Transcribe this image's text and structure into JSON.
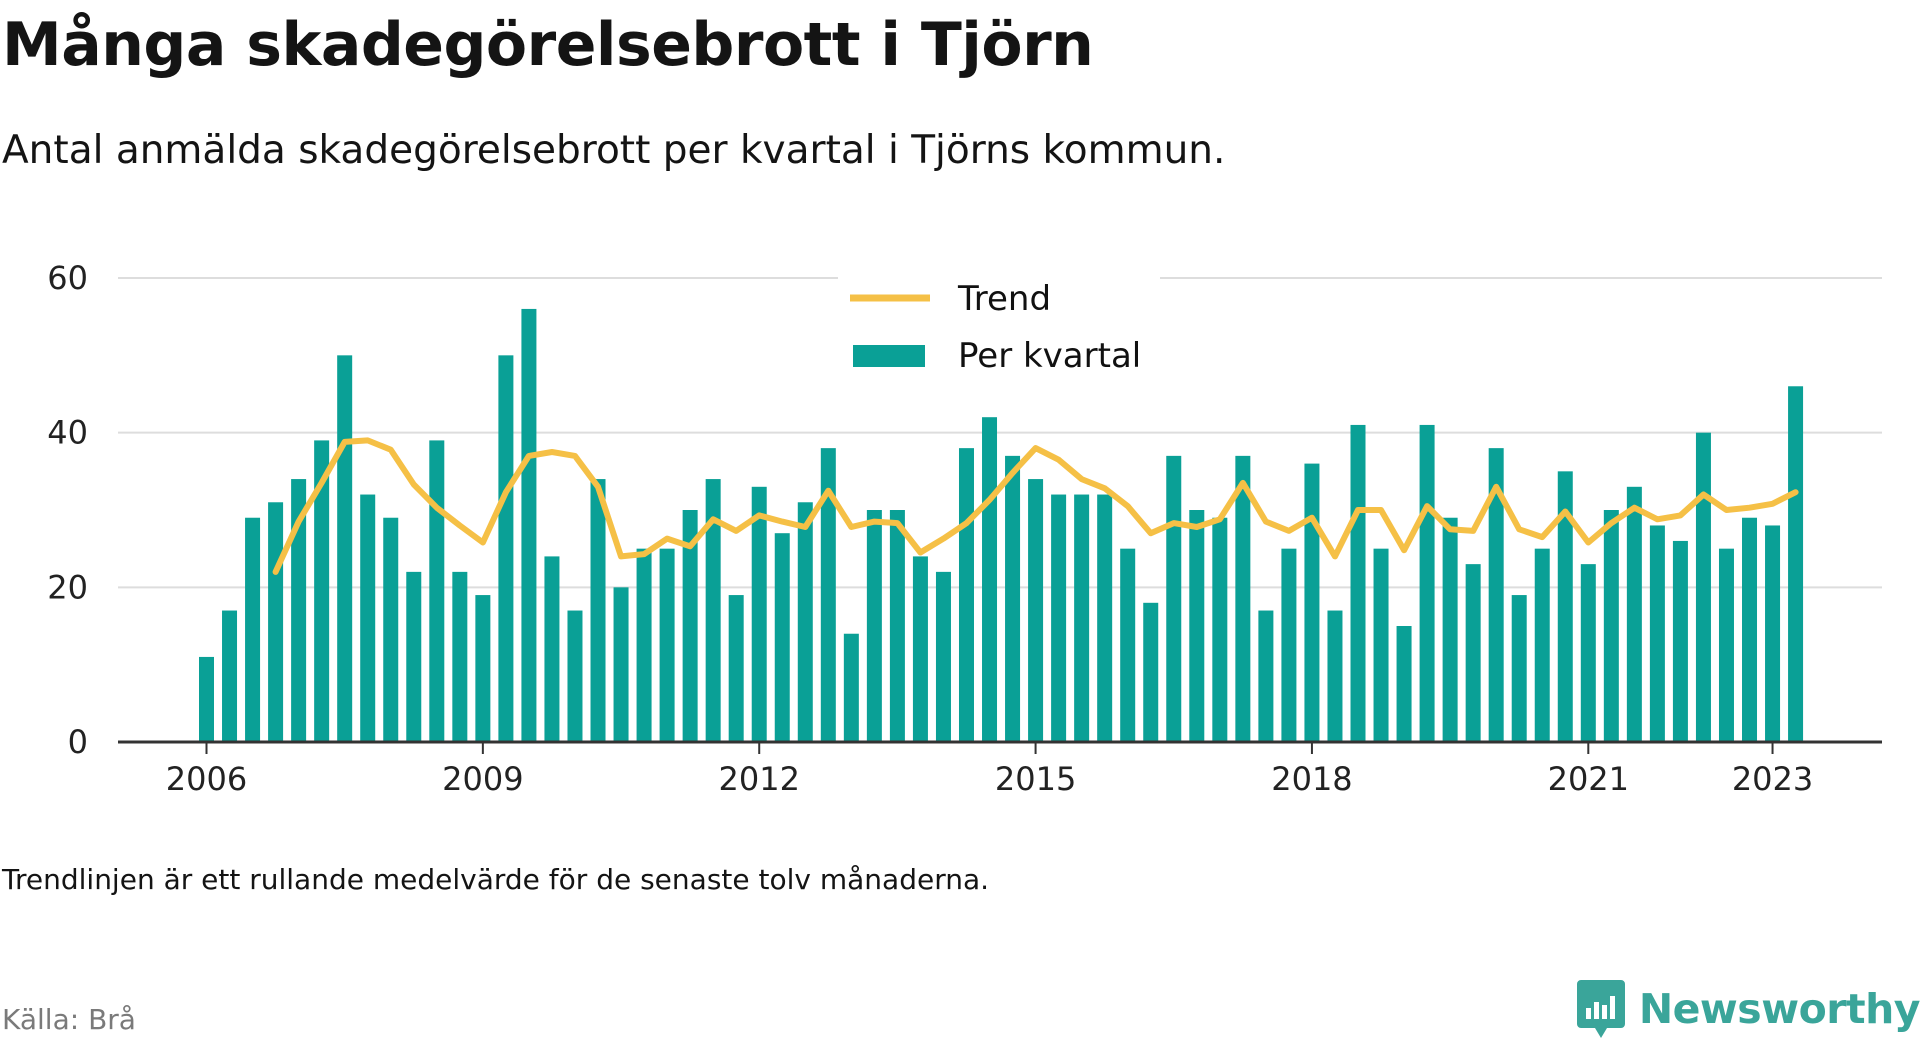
{
  "title": "Många skadegörelsebrott i Tjörn",
  "subtitle": "Antal anmälda skadegörelsebrott per kvartal i Tjörns kommun.",
  "note": "Trendlinjen är ett rullande medelvärde för de senaste tolv månaderna.",
  "source": "Källa: Brå",
  "brand": {
    "name": "Newsworthy",
    "icon": "newsworthy-logo-icon",
    "color": "#3aa59a"
  },
  "colors": {
    "bars": "#0aa096",
    "trend": "#f5c046",
    "grid": "#dddddd",
    "axis": "#333333"
  },
  "chart_data": {
    "type": "bar",
    "x_start": "2006 Q1",
    "x_tick_labels": [
      "2006",
      "2009",
      "2012",
      "2015",
      "2018",
      "2021",
      "2023"
    ],
    "y_ticks": [
      0,
      20,
      40,
      60
    ],
    "ylim": [
      0,
      60
    ],
    "grid": true,
    "legend_position": "top-center",
    "series": [
      {
        "name": "Per kvartal",
        "kind": "bar",
        "values": [
          11,
          17,
          29,
          31,
          34,
          39,
          50,
          32,
          29,
          22,
          39,
          22,
          19,
          50,
          56,
          24,
          17,
          34,
          20,
          25,
          25,
          30,
          34,
          19,
          33,
          27,
          31,
          38,
          14,
          30,
          30,
          24,
          22,
          38,
          42,
          37,
          34,
          32,
          32,
          32,
          25,
          18,
          37,
          30,
          29,
          37,
          17,
          25,
          36,
          17,
          41,
          25,
          15,
          41,
          29,
          23,
          38,
          19,
          25,
          35,
          23,
          30,
          33,
          28,
          26,
          40,
          25,
          29,
          28,
          46
        ]
      },
      {
        "name": "Trend",
        "kind": "line",
        "values": [
          null,
          null,
          null,
          22,
          28.5,
          33.5,
          38.8,
          39,
          37.8,
          33.3,
          30.3,
          28,
          25.8,
          32.3,
          37,
          37.5,
          37,
          33,
          24,
          24.3,
          26.3,
          25.3,
          28.8,
          27.3,
          29.3,
          28.5,
          27.8,
          32.5,
          27.8,
          28.5,
          28.3,
          24.5,
          26.3,
          28.3,
          31.3,
          34.8,
          38,
          36.5,
          34,
          32.8,
          30.5,
          27,
          28.3,
          27.8,
          28.8,
          33.5,
          28.5,
          27.3,
          29,
          24,
          30,
          30,
          24.8,
          30.5,
          27.5,
          27.3,
          33,
          27.5,
          26.5,
          29.8,
          25.8,
          28.3,
          30.3,
          28.8,
          29.3,
          32,
          30,
          30.3,
          30.8,
          32.3
        ]
      }
    ]
  }
}
